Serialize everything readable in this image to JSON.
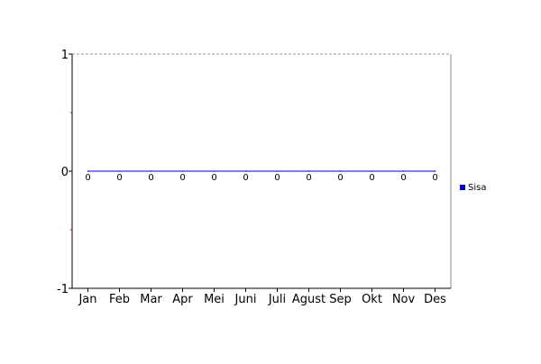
{
  "chart_data": {
    "type": "line",
    "title": "",
    "xlabel": "",
    "ylabel": "",
    "categories": [
      "Jan",
      "Feb",
      "Mar",
      "Apr",
      "Mei",
      "Juni",
      "Juli",
      "Agust",
      "Sep",
      "Okt",
      "Nov",
      "Des"
    ],
    "series": [
      {
        "name": "Sisa",
        "values": [
          0,
          0,
          0,
          0,
          0,
          0,
          0,
          0,
          0,
          0,
          0,
          0
        ],
        "data_labels": [
          "0",
          "0",
          "0",
          "0",
          "0",
          "0",
          "0",
          "0",
          "0",
          "0",
          "0",
          "0"
        ]
      }
    ],
    "ylim": [
      -1,
      1
    ],
    "y_ticks": [
      "-1",
      "0",
      "1"
    ],
    "grid": false,
    "legend": "right",
    "colors": {
      "series": "#0000cc",
      "legend_marker": "#0000cc",
      "axis": "#000000",
      "frame": "#888888",
      "minor_tick": "#cc0000",
      "top_line": "#999999"
    }
  }
}
